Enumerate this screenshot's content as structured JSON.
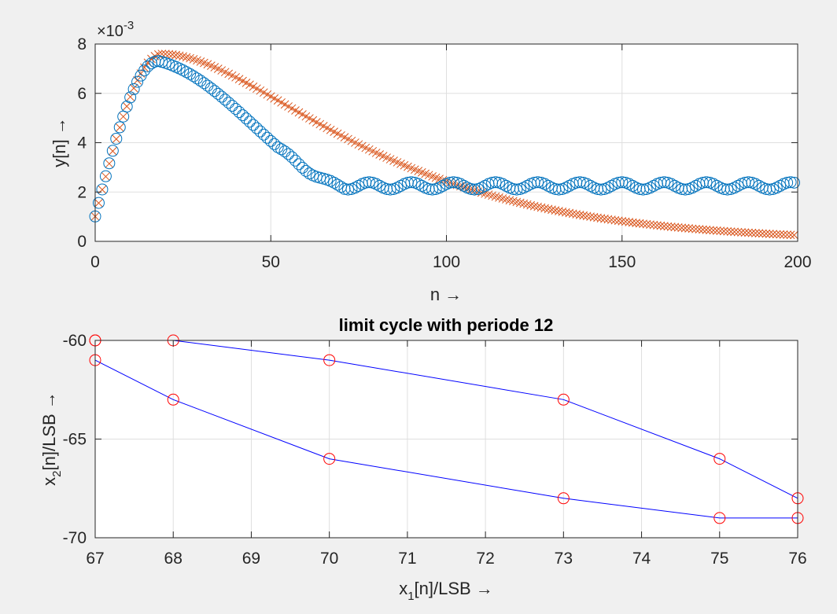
{
  "chart_data": [
    {
      "type": "scatter",
      "title": "",
      "xlabel": "n →",
      "ylabel": "y[n] →",
      "xlim": [
        0,
        200
      ],
      "ylim": [
        0,
        0.008
      ],
      "y_exponent_label": "×10^-3",
      "x_ticks": [
        0,
        50,
        100,
        150,
        200
      ],
      "x_tick_labels": [
        "0",
        "50",
        "100",
        "150",
        "200"
      ],
      "y_ticks": [
        0,
        0.002,
        0.004,
        0.006,
        0.008
      ],
      "y_tick_labels": [
        "0",
        "2",
        "4",
        "6",
        "8"
      ],
      "grid": true,
      "series": [
        {
          "marker": "circle",
          "color": "#0072BD",
          "x_range": [
            0,
            199
          ],
          "model": {
            "peak_at": 18,
            "peak_value": 0.00731,
            "start_value": 0.00101,
            "limit_cycle_start": 72,
            "limit_cycle_mean": 0.00225,
            "limit_cycle_amplitude": 0.00015,
            "limit_cycle_period": 12,
            "ripple_start": 52
          }
        },
        {
          "marker": "x",
          "color": "#D95319",
          "x_range": [
            0,
            199
          ],
          "model": {
            "peak_at": 19,
            "peak_value": 0.0076,
            "start_value": 0.00101,
            "decay_rate": 0.029
          }
        }
      ]
    },
    {
      "type": "line",
      "title": "limit cycle with periode 12",
      "xlabel": "x_1[n]/LSB →",
      "xlabel_parts": [
        "x",
        "1",
        "[n]/LSB →"
      ],
      "ylabel": "x_2[n]/LSB →",
      "ylabel_parts": [
        "x",
        "2",
        "[n]/LSB →"
      ],
      "xlim": [
        67,
        76
      ],
      "ylim": [
        -70,
        -60
      ],
      "x_ticks": [
        67,
        68,
        69,
        70,
        71,
        72,
        73,
        74,
        75,
        76
      ],
      "x_tick_labels": [
        "67",
        "68",
        "69",
        "70",
        "71",
        "72",
        "73",
        "74",
        "75",
        "76"
      ],
      "y_ticks": [
        -70,
        -65,
        -60
      ],
      "y_tick_labels": [
        "-70",
        "-65",
        "-60"
      ],
      "grid": true,
      "line_color": "#0000FF",
      "marker_color": "#FF0000",
      "x": [
        67,
        68,
        70,
        73,
        75,
        76,
        76,
        75,
        73,
        70,
        68,
        67,
        67
      ],
      "y": [
        -60,
        -60,
        -61,
        -63,
        -66,
        -68,
        -69,
        -69,
        -68,
        -66,
        -63,
        -61,
        -60
      ]
    }
  ]
}
